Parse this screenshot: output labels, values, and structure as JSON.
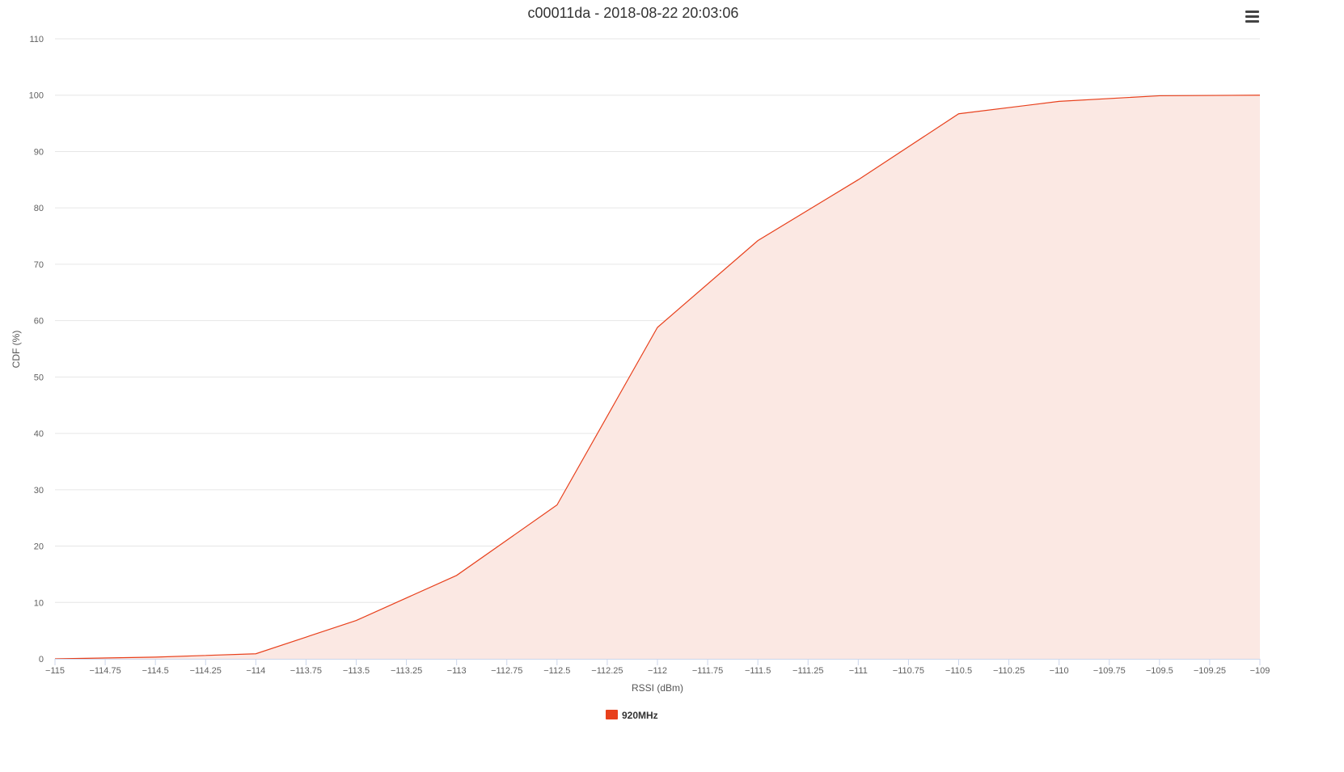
{
  "chart_data": {
    "type": "area",
    "title": "c00011da - 2018-08-22 20:03:06",
    "xlabel": "RSSI (dBm)",
    "ylabel": "CDF (%)",
    "xlim": [
      -115,
      -109
    ],
    "ylim": [
      0,
      110
    ],
    "x_ticks": [
      -115,
      -114.75,
      -114.5,
      -114.25,
      -114,
      -113.75,
      -113.5,
      -113.25,
      -113,
      -112.75,
      -112.5,
      -112.25,
      -112,
      -111.75,
      -111.5,
      -111.25,
      -111,
      -110.75,
      -110.5,
      -110.25,
      -110,
      -109.75,
      -109.5,
      -109.25,
      -109
    ],
    "y_ticks": [
      0,
      10,
      20,
      30,
      40,
      50,
      60,
      70,
      80,
      90,
      100,
      110
    ],
    "grid": true,
    "legend_position": "bottom-center",
    "series": [
      {
        "name": "920MHz",
        "color": "#e8401c",
        "fill": "#fbe8e3",
        "x": [
          -115,
          -114.5,
          -114,
          -113.5,
          -113,
          -112.5,
          -112,
          -111.5,
          -111,
          -110.5,
          -110,
          -109.5,
          -109
        ],
        "y": [
          0,
          0.3,
          0.9,
          6.8,
          14.8,
          27.3,
          58.8,
          74.2,
          85.0,
          96.7,
          98.9,
          99.9,
          100
        ]
      }
    ]
  },
  "menu": {
    "icon": "hamburger-menu-icon"
  }
}
